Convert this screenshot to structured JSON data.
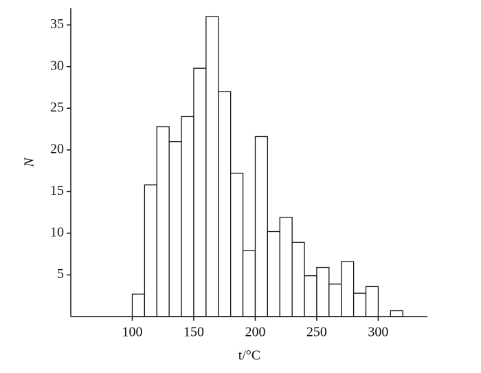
{
  "chart_data": {
    "type": "histogram",
    "x_label": "t/°C",
    "y_label": "N",
    "bins": [
      100,
      110,
      120,
      130,
      140,
      150,
      160,
      170,
      180,
      190,
      200,
      210,
      220,
      230,
      240,
      250,
      260,
      270,
      280,
      290,
      300,
      310,
      320
    ],
    "values": [
      2.7,
      15.8,
      22.8,
      21,
      24,
      29.8,
      36,
      27,
      17.2,
      7.9,
      21.6,
      10.2,
      11.9,
      8.9,
      4.9,
      5.9,
      3.9,
      6.6,
      2.8,
      3.6,
      0,
      0.7
    ],
    "xlim": [
      50,
      340
    ],
    "ylim": [
      0,
      37
    ],
    "xticks": [
      100,
      150,
      200,
      250,
      300
    ],
    "yticks": [
      5,
      10,
      15,
      20,
      25,
      30,
      35
    ],
    "grid": false
  }
}
